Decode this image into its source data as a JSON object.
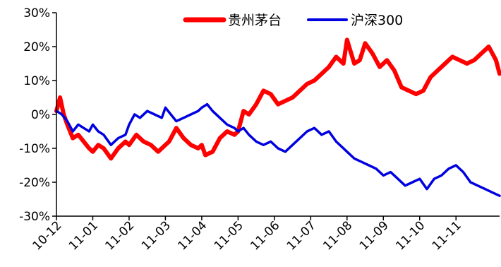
{
  "chart_data": {
    "type": "line",
    "title": "",
    "xlabel": "",
    "ylabel": "",
    "ylim": [
      -30,
      30
    ],
    "yticks": [
      "30%",
      "20%",
      "10%",
      "0%",
      "-10%",
      "-20%",
      "-30%"
    ],
    "ytick_values": [
      30,
      20,
      10,
      0,
      -10,
      -20,
      -30
    ],
    "categories": [
      "10-12",
      "11-01",
      "11-02",
      "11-03",
      "11-04",
      "11-05",
      "11-06",
      "11-07",
      "11-08",
      "11-09",
      "11-10",
      "11-11"
    ],
    "x_positions": [
      0,
      1,
      2,
      3,
      4,
      5,
      6,
      7,
      8,
      9,
      10,
      11
    ],
    "xlim": [
      0,
      12.2
    ],
    "legend": {
      "position": "top"
    },
    "grid": false,
    "series": [
      {
        "name": "贵州茅台",
        "color": "#ff0000",
        "x": [
          0,
          0.1,
          0.2,
          0.3,
          0.45,
          0.6,
          0.75,
          0.9,
          1.0,
          1.15,
          1.3,
          1.5,
          1.7,
          1.9,
          2.0,
          2.2,
          2.4,
          2.6,
          2.8,
          3.0,
          3.1,
          3.3,
          3.5,
          3.7,
          3.9,
          4.0,
          4.1,
          4.3,
          4.5,
          4.7,
          4.9,
          5.0,
          5.15,
          5.3,
          5.5,
          5.7,
          5.9,
          6.1,
          6.3,
          6.5,
          6.7,
          6.9,
          7.1,
          7.3,
          7.5,
          7.7,
          7.9,
          8.0,
          8.2,
          8.35,
          8.5,
          8.7,
          8.9,
          9.1,
          9.3,
          9.5,
          9.7,
          9.9,
          10.1,
          10.3,
          10.5,
          10.7,
          10.9,
          11.1,
          11.3,
          11.5,
          11.7,
          11.9,
          12.1,
          12.2
        ],
        "values": [
          1,
          5,
          0,
          -3,
          -7,
          -6,
          -8,
          -10,
          -11,
          -9,
          -10,
          -13,
          -10,
          -8,
          -9,
          -6,
          -8,
          -9,
          -11,
          -9,
          -8,
          -4,
          -7,
          -9,
          -10,
          -9,
          -12,
          -11,
          -7,
          -5,
          -6,
          -5,
          1,
          0,
          3,
          7,
          6,
          3,
          4,
          5,
          7,
          9,
          10,
          12,
          14,
          17,
          15,
          22,
          15,
          16,
          21,
          18,
          14,
          16,
          13,
          8,
          7,
          6,
          7,
          11,
          13,
          15,
          17,
          16,
          15,
          16,
          18,
          20,
          16,
          12
        ]
      },
      {
        "name": "沪深300",
        "color": "#0000e0",
        "x": [
          0,
          0.15,
          0.3,
          0.45,
          0.6,
          0.75,
          0.9,
          1.0,
          1.15,
          1.3,
          1.5,
          1.7,
          1.9,
          2.0,
          2.15,
          2.3,
          2.5,
          2.7,
          2.9,
          3.0,
          3.15,
          3.3,
          3.5,
          3.7,
          3.9,
          4.0,
          4.15,
          4.3,
          4.5,
          4.7,
          4.9,
          5.0,
          5.15,
          5.3,
          5.5,
          5.7,
          5.9,
          6.1,
          6.3,
          6.5,
          6.7,
          6.9,
          7.1,
          7.3,
          7.5,
          7.7,
          7.9,
          8.0,
          8.2,
          8.4,
          8.6,
          8.8,
          9.0,
          9.2,
          9.4,
          9.6,
          9.8,
          10.0,
          10.2,
          10.4,
          10.6,
          10.8,
          11.0,
          11.2,
          11.4,
          11.6,
          11.8,
          12.0,
          12.2
        ],
        "values": [
          1,
          0,
          -2,
          -5,
          -3,
          -4,
          -5,
          -3,
          -5,
          -6,
          -9,
          -7,
          -6,
          -3,
          0,
          -1,
          1,
          0,
          -1,
          2,
          0,
          -2,
          -1,
          0,
          1,
          2,
          3,
          1,
          -1,
          -3,
          -4,
          -5,
          -4,
          -6,
          -8,
          -9,
          -8,
          -10,
          -11,
          -9,
          -7,
          -5,
          -4,
          -6,
          -5,
          -8,
          -10,
          -11,
          -13,
          -14,
          -15,
          -16,
          -18,
          -17,
          -19,
          -21,
          -20,
          -19,
          -22,
          -19,
          -18,
          -16,
          -15,
          -17,
          -20,
          -21,
          -22,
          -23,
          -24
        ]
      }
    ]
  }
}
